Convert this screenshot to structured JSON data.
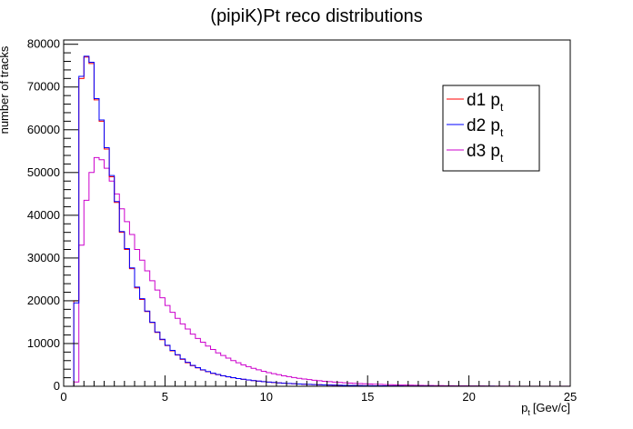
{
  "chart_data": {
    "type": "line",
    "title": "(pipiK)Pt reco distributions",
    "xlabel": "p",
    "xlabel_sub": "t",
    "xlabel_unit": "[Gev/c]",
    "ylabel": "number of tracks",
    "xlim": [
      0,
      25
    ],
    "ylim": [
      0,
      81000
    ],
    "x_ticks": [
      "0",
      "5",
      "10",
      "15",
      "20",
      "25"
    ],
    "y_ticks": [
      "0",
      "10000",
      "20000",
      "30000",
      "40000",
      "50000",
      "60000",
      "70000",
      "80000"
    ],
    "bin_width": 0.25,
    "step": "histogram",
    "grid": false,
    "legend_position": "top-right",
    "series": [
      {
        "name": "d1 p",
        "name_sub": "t",
        "color": "#ff0000",
        "values": [
          0,
          0,
          20000,
          72000,
          77000,
          75500,
          67000,
          62000,
          55500,
          49000,
          43000,
          36000,
          32000,
          27500,
          23000,
          20300,
          17500,
          14900,
          12600,
          10900,
          9500,
          8300,
          7300,
          6300,
          5500,
          4800,
          4300,
          3800,
          3400,
          3000,
          2700,
          2450,
          2200,
          2000,
          1800,
          1620,
          1460,
          1320,
          1200,
          1080,
          980,
          880,
          800,
          720,
          650,
          590,
          530,
          480,
          430,
          390,
          355,
          320,
          290,
          260,
          235,
          212,
          192,
          174,
          158,
          143,
          130,
          118,
          107,
          97,
          88,
          80,
          72,
          65,
          59,
          54,
          49,
          45,
          41,
          37,
          34,
          31,
          28,
          25,
          23,
          21,
          19,
          17,
          15,
          14,
          13,
          12,
          11,
          10,
          9,
          8,
          7,
          6,
          6,
          5,
          5,
          4,
          4,
          3,
          3,
          3
        ]
      },
      {
        "name": "d2 p",
        "name_sub": "t",
        "color": "#0000ff",
        "values": [
          0,
          0,
          19500,
          72500,
          77200,
          75800,
          67300,
          62300,
          55800,
          49300,
          43200,
          36200,
          32200,
          27700,
          23200,
          20500,
          17600,
          15000,
          12700,
          11000,
          9600,
          8400,
          7400,
          6400,
          5600,
          4900,
          4350,
          3850,
          3450,
          3050,
          2750,
          2480,
          2230,
          2020,
          1820,
          1640,
          1480,
          1340,
          1210,
          1090,
          990,
          890,
          810,
          730,
          660,
          600,
          540,
          490,
          440,
          400,
          360,
          325,
          295,
          265,
          240,
          216,
          196,
          177,
          160,
          145,
          132,
          120,
          109,
          99,
          90,
          81,
          73,
          66,
          60,
          55,
          50,
          46,
          42,
          38,
          35,
          32,
          29,
          26,
          24,
          22,
          20,
          18,
          16,
          15,
          14,
          13,
          12,
          11,
          10,
          9,
          8,
          7,
          6,
          6,
          5,
          5,
          4,
          4,
          3,
          3
        ]
      },
      {
        "name": "d3 p",
        "name_sub": "t",
        "color": "#cc00cc",
        "values": [
          0,
          0,
          1000,
          33000,
          43500,
          50000,
          53500,
          53000,
          51000,
          48000,
          45000,
          41500,
          38500,
          35500,
          32000,
          29500,
          27000,
          24700,
          22500,
          20700,
          18900,
          17300,
          15900,
          14600,
          13400,
          12200,
          11200,
          10300,
          9400,
          8600,
          7800,
          7200,
          6600,
          6000,
          5500,
          5000,
          4600,
          4200,
          3850,
          3500,
          3200,
          2950,
          2700,
          2450,
          2250,
          2050,
          1870,
          1710,
          1560,
          1420,
          1300,
          1180,
          1080,
          990,
          900,
          820,
          750,
          690,
          630,
          575,
          525,
          480,
          440,
          400,
          365,
          335,
          305,
          280,
          255,
          233,
          213,
          195,
          178,
          163,
          149,
          136,
          124,
          113,
          103,
          94,
          86,
          79,
          72,
          66,
          60,
          55,
          50,
          46,
          42,
          38,
          35,
          32,
          29,
          27,
          24,
          22,
          20,
          18,
          17,
          15
        ]
      }
    ]
  }
}
